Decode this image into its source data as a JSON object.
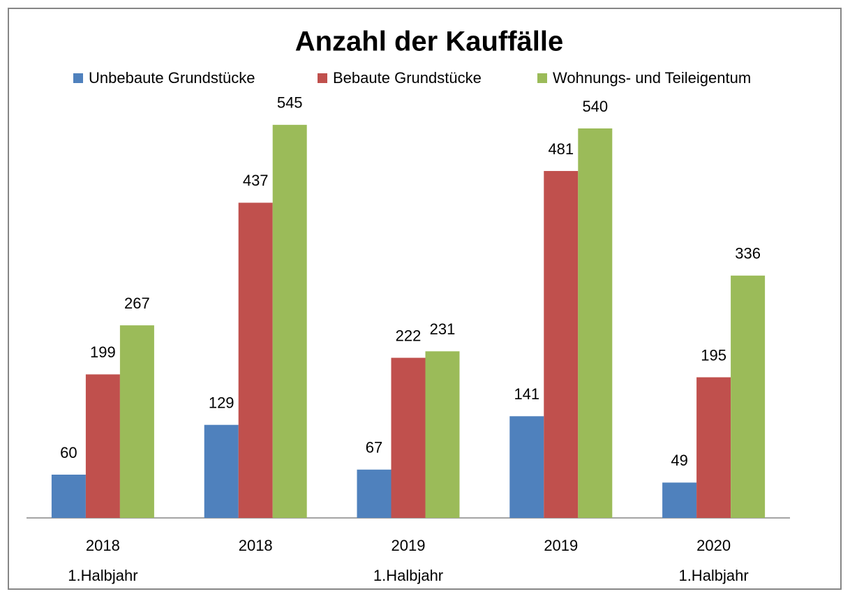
{
  "chart_data": {
    "type": "bar",
    "title": "Anzahl der Kauffälle",
    "categories": [
      [
        "2018",
        "1.Halbjahr"
      ],
      [
        "2018"
      ],
      [
        "2019",
        "1.Halbjahr"
      ],
      [
        "2019"
      ],
      [
        "2020",
        "1.Halbjahr"
      ]
    ],
    "series": [
      {
        "name": "Unbebaute Grundstücke",
        "color": "#4f81bd",
        "values": [
          60,
          129,
          67,
          141,
          49
        ]
      },
      {
        "name": "Bebaute Grundstücke",
        "color": "#c0504d",
        "values": [
          199,
          437,
          222,
          481,
          195
        ]
      },
      {
        "name": "Wohnungs- und Teileigentum",
        "color": "#9bbb59",
        "values": [
          267,
          545,
          231,
          540,
          336
        ]
      }
    ],
    "ylim": [
      0,
      600
    ],
    "legend": "top"
  }
}
